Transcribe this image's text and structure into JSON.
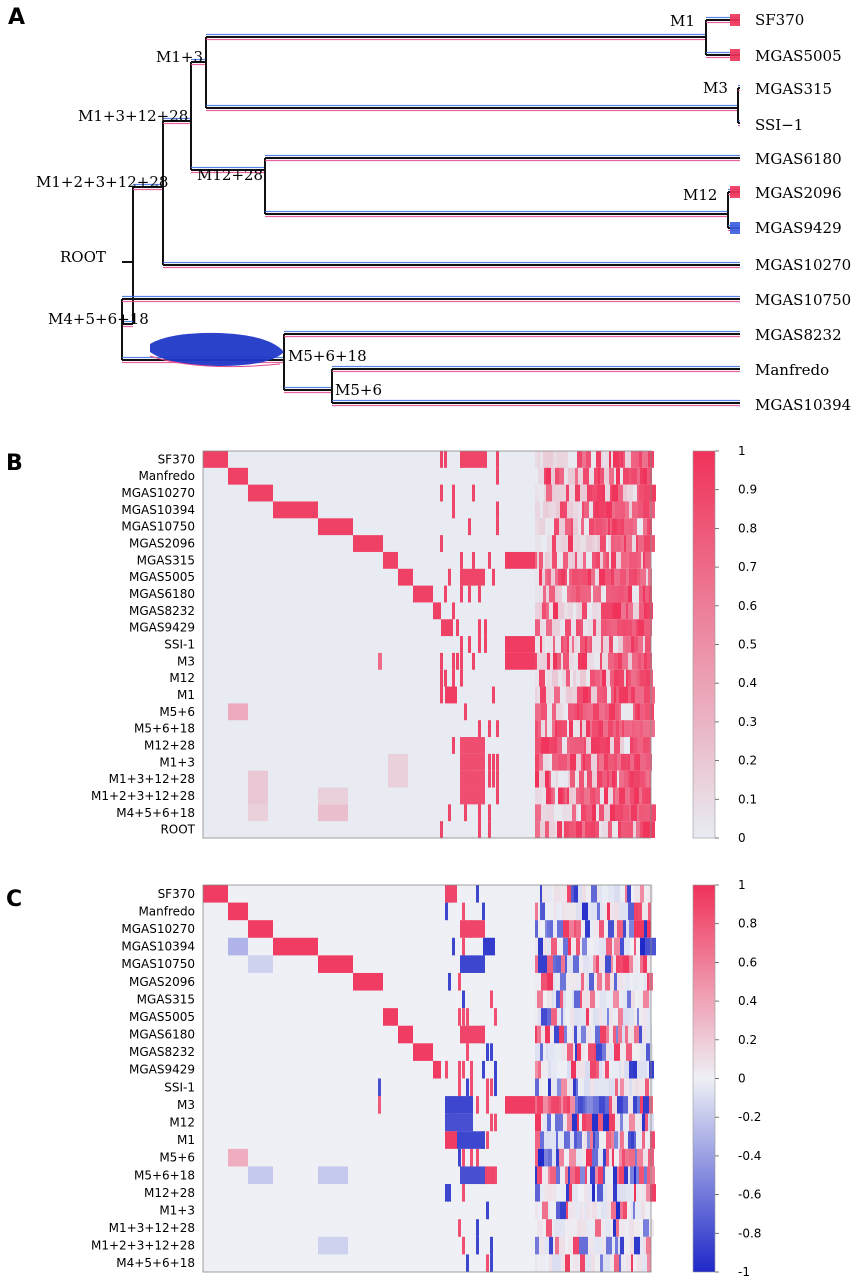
{
  "panels": {
    "a": "A",
    "b": "B",
    "c": "C"
  },
  "colors": {
    "positive": "#f0325a",
    "negative": "#1e28c8",
    "background": "#e8ecf2",
    "branch_blue": "#3a6ee0",
    "branch_pink": "#e24a8a"
  },
  "chart_data": [
    {
      "type": "tree",
      "leaves": [
        "SF370",
        "MGAS5005",
        "MGAS315",
        "SSI−1",
        "MGAS6180",
        "MGAS2096",
        "MGAS9429",
        "MGAS10270",
        "MGAS10750",
        "MGAS8232",
        "Manfredo",
        "MGAS10394"
      ],
      "nodes": [
        {
          "name": "ROOT",
          "children": [
            "M1+2+3+12+28",
            "M4+5+6+18"
          ]
        },
        {
          "name": "M1+2+3+12+28",
          "children": [
            "M1+3+12+28",
            "MGAS10270"
          ]
        },
        {
          "name": "M1+3+12+28",
          "children": [
            "M1+3",
            "M12+28"
          ]
        },
        {
          "name": "M1+3",
          "children": [
            "M1",
            "M3"
          ]
        },
        {
          "name": "M1",
          "children": [
            "SF370",
            "MGAS5005"
          ]
        },
        {
          "name": "M3",
          "children": [
            "MGAS315",
            "SSI−1"
          ]
        },
        {
          "name": "M12+28",
          "children": [
            "MGAS6180",
            "M12"
          ]
        },
        {
          "name": "M12",
          "children": [
            "MGAS2096",
            "MGAS9429"
          ]
        },
        {
          "name": "M4+5+6+18",
          "children": [
            "MGAS10750",
            "M5+6+18"
          ]
        },
        {
          "name": "M5+6+18",
          "children": [
            "MGAS8232",
            "M5+6"
          ]
        },
        {
          "name": "M5+6",
          "children": [
            "Manfredo",
            "MGAS10394"
          ]
        }
      ]
    },
    {
      "type": "heatmap",
      "rows": [
        "SF370",
        "Manfredo",
        "MGAS10270",
        "MGAS10394",
        "MGAS10750",
        "MGAS2096",
        "MGAS315",
        "MGAS5005",
        "MGAS6180",
        "MGAS8232",
        "MGAS9429",
        "SSI-1",
        "M3",
        "M12",
        "M1",
        "M5+6",
        "M5+6+18",
        "M12+28",
        "M1+3",
        "M1+3+12+28",
        "M1+2+3+12+28",
        "M4+5+6+18",
        "ROOT"
      ],
      "colorbar": {
        "min": 0,
        "max": 1,
        "ticks": [
          "1",
          "0.9",
          "0.8",
          "0.7",
          "0.6",
          "0.5",
          "0.4",
          "0.3",
          "0.2",
          "0.1",
          "0"
        ]
      }
    },
    {
      "type": "heatmap",
      "rows": [
        "SF370",
        "Manfredo",
        "MGAS10270",
        "MGAS10394",
        "MGAS10750",
        "MGAS2096",
        "MGAS315",
        "MGAS5005",
        "MGAS6180",
        "MGAS8232",
        "MGAS9429",
        "SSI-1",
        "M3",
        "M12",
        "M1",
        "M5+6",
        "M5+6+18",
        "M12+28",
        "M1+3",
        "M1+3+12+28",
        "M1+2+3+12+28",
        "M4+5+6+18"
      ],
      "colorbar": {
        "min": -1,
        "max": 1,
        "ticks": [
          "1",
          "0.8",
          "0.6",
          "0.4",
          "0.2",
          "0",
          "-0.2",
          "-0.4",
          "-0.6",
          "-0.8",
          "-1"
        ]
      }
    }
  ]
}
